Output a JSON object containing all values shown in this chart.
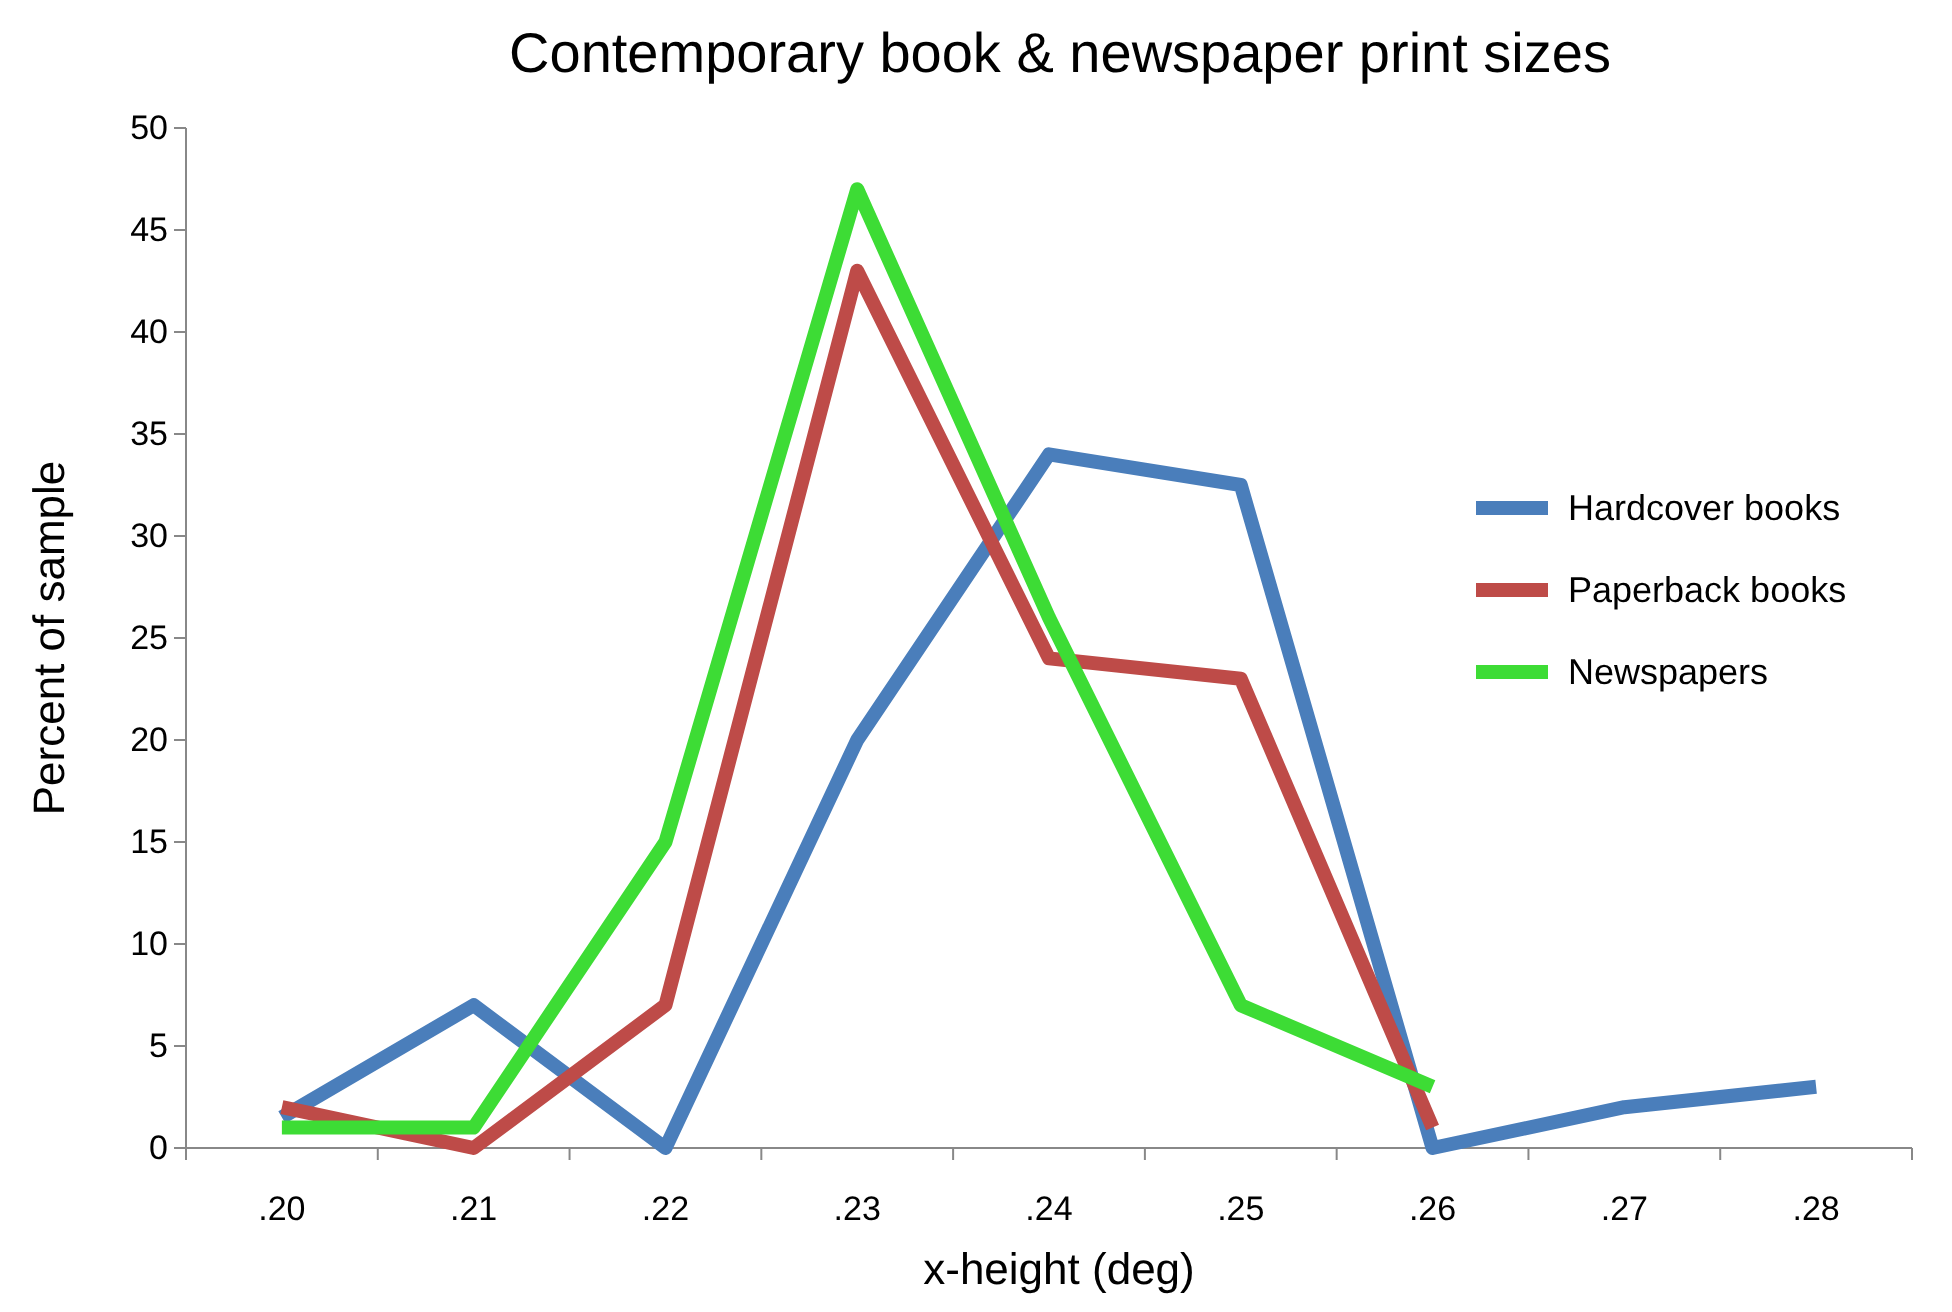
{
  "chart_data": {
    "type": "line",
    "title": "Contemporary book & newspaper print sizes",
    "xlabel": "x-height (deg)",
    "ylabel": "Percent of sample",
    "categories": [
      ".20",
      ".21",
      ".22",
      ".23",
      ".24",
      ".25",
      ".26",
      ".27",
      ".28"
    ],
    "series": [
      {
        "name": "Hardcover books",
        "color": "#4a7ebb",
        "values": [
          1.5,
          7,
          0,
          20,
          34,
          32.5,
          0,
          2,
          3
        ]
      },
      {
        "name": "Paperback books",
        "color": "#be4b48",
        "values": [
          2,
          0,
          7,
          43,
          24,
          23,
          1,
          null,
          null
        ]
      },
      {
        "name": "Newspapers",
        "color": "#3ddc35",
        "values": [
          1,
          1,
          15,
          47,
          26,
          7,
          3,
          null,
          null
        ]
      }
    ],
    "ylim": [
      0,
      50
    ],
    "yticks": [
      0,
      5,
      10,
      15,
      20,
      25,
      30,
      35,
      40,
      45,
      50
    ],
    "grid": false,
    "legend": "right",
    "marker": "none",
    "line_style": "solid"
  }
}
